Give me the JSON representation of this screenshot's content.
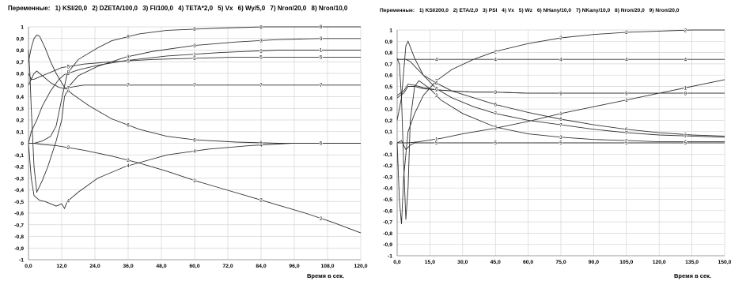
{
  "chart_data": [
    {
      "type": "line",
      "title": "",
      "legend_label": "Переменные:",
      "legend": [
        "1) KSI/20,0",
        "2) DZETA/100,0",
        "3) FI/100,0",
        "4) TETA*2,0",
        "5) Vx",
        "6) Wy/5,0",
        "7) Nгоп/20,0",
        "8) Nгоп/10,0"
      ],
      "xlabel": "Время в сек.",
      "xlim": [
        0,
        120
      ],
      "ylim": [
        -1,
        1
      ],
      "xticks": [
        "0,0",
        "12,0",
        "24,0",
        "36,0",
        "48,0",
        "60,0",
        "72,0",
        "84,0",
        "96,0",
        "108,0",
        "120,0"
      ],
      "yticks": [
        "1",
        "0,9",
        "0,8",
        "0,7",
        "0,6",
        "0,5",
        "0,4",
        "0,3",
        "0,2",
        "0,1",
        "0",
        "-0,1",
        "-0,2",
        "-0,3",
        "-0,4",
        "-0,5",
        "-0,6",
        "-0,7",
        "-0,8",
        "-0,9",
        "-1"
      ],
      "grid": true,
      "series": [
        {
          "name": "1",
          "x": [
            0,
            1,
            3,
            5,
            8,
            11,
            13,
            18,
            25,
            35,
            50,
            70,
            90,
            110,
            120
          ],
          "y": [
            0,
            0.1,
            0.2,
            0.32,
            0.45,
            0.55,
            0.59,
            0.63,
            0.67,
            0.71,
            0.75,
            0.78,
            0.8,
            0.8,
            0.8
          ]
        },
        {
          "name": "2",
          "x": [
            0,
            2,
            5,
            10,
            20,
            30,
            40,
            50,
            60,
            70,
            80,
            90,
            100,
            110,
            120
          ],
          "y": [
            0,
            0,
            -0.01,
            -0.02,
            -0.06,
            -0.11,
            -0.17,
            -0.24,
            -0.32,
            -0.39,
            -0.46,
            -0.53,
            -0.6,
            -0.68,
            -0.77
          ]
        },
        {
          "name": "3",
          "x": [
            0,
            0.5,
            1,
            2,
            3,
            5,
            7,
            10,
            12,
            13,
            15,
            18,
            25,
            35,
            45,
            60,
            75,
            90,
            105,
            120
          ],
          "y": [
            0.8,
            0.6,
            0.3,
            -0.2,
            -0.42,
            -0.32,
            -0.2,
            0.02,
            0.2,
            0.4,
            0.5,
            0.58,
            0.66,
            0.74,
            0.79,
            0.84,
            0.87,
            0.89,
            0.9,
            0.9
          ]
        },
        {
          "name": "4",
          "x": [
            0,
            1,
            2,
            4,
            6,
            8,
            10,
            12,
            13,
            14,
            18,
            25,
            35,
            50,
            65,
            80,
            95,
            110,
            120
          ],
          "y": [
            0,
            -0.3,
            -0.45,
            -0.49,
            -0.5,
            -0.52,
            -0.54,
            -0.52,
            -0.56,
            -0.5,
            -0.42,
            -0.3,
            -0.2,
            -0.1,
            -0.05,
            -0.02,
            0,
            0,
            0
          ]
        },
        {
          "name": "5",
          "x": [
            0,
            1,
            2,
            4,
            7,
            10,
            12,
            15,
            20,
            30,
            45,
            60,
            75,
            90,
            105,
            120
          ],
          "y": [
            0.6,
            0.55,
            0.55,
            0.57,
            0.6,
            0.63,
            0.65,
            0.66,
            0.68,
            0.7,
            0.72,
            0.73,
            0.74,
            0.74,
            0.74,
            0.74
          ]
        },
        {
          "name": "6",
          "x": [
            0,
            1,
            2,
            3,
            4,
            6,
            8,
            10,
            13,
            16,
            22,
            30,
            40,
            50,
            60,
            75,
            90,
            105,
            120
          ],
          "y": [
            0.7,
            0.82,
            0.9,
            0.93,
            0.92,
            0.82,
            0.7,
            0.6,
            0.48,
            0.42,
            0.32,
            0.21,
            0.12,
            0.06,
            0.03,
            0.01,
            0,
            0,
            0
          ]
        },
        {
          "name": "7",
          "x": [
            0,
            1,
            2,
            3,
            4,
            6,
            8,
            11,
            13,
            15,
            20,
            30,
            50,
            70,
            90,
            110,
            120
          ],
          "y": [
            0.5,
            0.55,
            0.6,
            0.62,
            0.6,
            0.56,
            0.52,
            0.48,
            0.47,
            0.48,
            0.5,
            0.5,
            0.5,
            0.5,
            0.5,
            0.5,
            0.5
          ]
        },
        {
          "name": "8",
          "x": [
            0,
            2,
            5,
            8,
            10,
            12,
            14,
            18,
            25,
            30,
            40,
            50,
            60,
            70,
            85,
            100,
            120
          ],
          "y": [
            0,
            0,
            0.02,
            0.06,
            0.15,
            0.38,
            0.6,
            0.72,
            0.82,
            0.88,
            0.94,
            0.97,
            0.98,
            0.99,
            1,
            1,
            1
          ]
        }
      ]
    },
    {
      "type": "line",
      "title": "",
      "legend_label": "Переменные:",
      "legend": [
        "1) KSI/200,0",
        "2) ETA/2,0",
        "3) PSI",
        "4) Vx",
        "5) Wz",
        "6) NHany/10,0",
        "7) NKany/10,0",
        "8) Nгоп/20,0",
        "9) Nгоп/20,0"
      ],
      "xlabel": "Время в сек.",
      "xlim": [
        0,
        150
      ],
      "ylim": [
        -1,
        1
      ],
      "xticks": [
        "0,0",
        "15,0",
        "30,0",
        "45,0",
        "60,0",
        "75,0",
        "90,0",
        "105,0",
        "120,0",
        "135,0",
        "150,0"
      ],
      "yticks": [
        "1",
        "0,9",
        "0,8",
        "0,7",
        "0,6",
        "0,5",
        "0,4",
        "0,3",
        "0,2",
        "0,1",
        "0",
        "-0,1",
        "-0,2",
        "-0,3",
        "-0,4",
        "-0,5",
        "-0,6",
        "-0,7",
        "-0,8",
        "-0,9",
        "-1"
      ],
      "grid": true,
      "series": [
        {
          "name": "1",
          "x": [
            0,
            5,
            10,
            20,
            30,
            45,
            60,
            75,
            90,
            105,
            120,
            135,
            150
          ],
          "y": [
            0,
            0,
            0.01,
            0.04,
            0.08,
            0.13,
            0.19,
            0.26,
            0.32,
            0.38,
            0.44,
            0.5,
            0.56
          ]
        },
        {
          "name": "2",
          "x": [
            0,
            1,
            2,
            3,
            5,
            8,
            12,
            18,
            25,
            35,
            45,
            60,
            75,
            90,
            105,
            120,
            135,
            150
          ],
          "y": [
            0,
            -0.5,
            -0.72,
            -0.3,
            0.1,
            0.26,
            0.42,
            0.55,
            0.65,
            0.74,
            0.81,
            0.88,
            0.93,
            0.96,
            0.98,
            0.99,
            1,
            1
          ]
        },
        {
          "name": "3",
          "x": [
            0,
            1,
            2,
            3,
            4,
            5,
            6,
            8,
            10,
            15,
            20,
            30,
            45,
            60,
            75,
            90,
            105,
            120,
            135,
            150
          ],
          "y": [
            0.75,
            0.7,
            0.4,
            -0.2,
            -0.68,
            -0.4,
            0.2,
            0.5,
            0.55,
            0.48,
            0.38,
            0.26,
            0.14,
            0.08,
            0.05,
            0.03,
            0.02,
            0.01,
            0.01,
            0.01
          ]
        },
        {
          "name": "4",
          "x": [
            0,
            3,
            5,
            8,
            10,
            15,
            20,
            30,
            45,
            60,
            75,
            90,
            105,
            120,
            135,
            150
          ],
          "y": [
            0.74,
            0.74,
            0.74,
            0.74,
            0.74,
            0.74,
            0.74,
            0.74,
            0.74,
            0.74,
            0.74,
            0.74,
            0.74,
            0.74,
            0.74,
            0.74
          ]
        },
        {
          "name": "5",
          "x": [
            0,
            2,
            4,
            6,
            8,
            10,
            15,
            30,
            45,
            60,
            75,
            90,
            105,
            120,
            135,
            150
          ],
          "y": [
            0,
            0.02,
            -0.06,
            -0.02,
            0,
            0,
            0,
            0,
            0,
            0,
            0,
            0,
            0,
            0,
            0,
            0
          ]
        },
        {
          "name": "6",
          "x": [
            0,
            2,
            4,
            6,
            8,
            12,
            18,
            25,
            35,
            45,
            60,
            75,
            90,
            105,
            120,
            135,
            150
          ],
          "y": [
            0.74,
            0.74,
            0.74,
            0.72,
            0.68,
            0.6,
            0.53,
            0.46,
            0.4,
            0.34,
            0.27,
            0.21,
            0.16,
            0.12,
            0.09,
            0.07,
            0.06
          ]
        },
        {
          "name": "7",
          "x": [
            0,
            2,
            4,
            5,
            6,
            8,
            12,
            18,
            25,
            35,
            45,
            60,
            75,
            90,
            105,
            120,
            135,
            150
          ],
          "y": [
            0.2,
            0.4,
            0.86,
            0.9,
            0.85,
            0.75,
            0.6,
            0.48,
            0.4,
            0.32,
            0.26,
            0.2,
            0.16,
            0.12,
            0.09,
            0.07,
            0.06,
            0.05
          ]
        },
        {
          "name": "8",
          "x": [
            0,
            3,
            5,
            8,
            12,
            18,
            25,
            35,
            45,
            60,
            75,
            90,
            105,
            120,
            135,
            150
          ],
          "y": [
            0.4,
            0.44,
            0.5,
            0.5,
            0.48,
            0.47,
            0.46,
            0.45,
            0.45,
            0.44,
            0.44,
            0.44,
            0.44,
            0.44,
            0.44,
            0.44
          ]
        },
        {
          "name": "9",
          "x": [
            0,
            3,
            5,
            8,
            12,
            18,
            25,
            35,
            45,
            60,
            75,
            90,
            105,
            120,
            135,
            150
          ],
          "y": [
            0.42,
            0.46,
            0.52,
            0.51,
            0.49,
            0.47,
            0.46,
            0.45,
            0.45,
            0.44,
            0.44,
            0.44,
            0.44,
            0.44,
            0.44,
            0.44
          ]
        }
      ]
    }
  ]
}
